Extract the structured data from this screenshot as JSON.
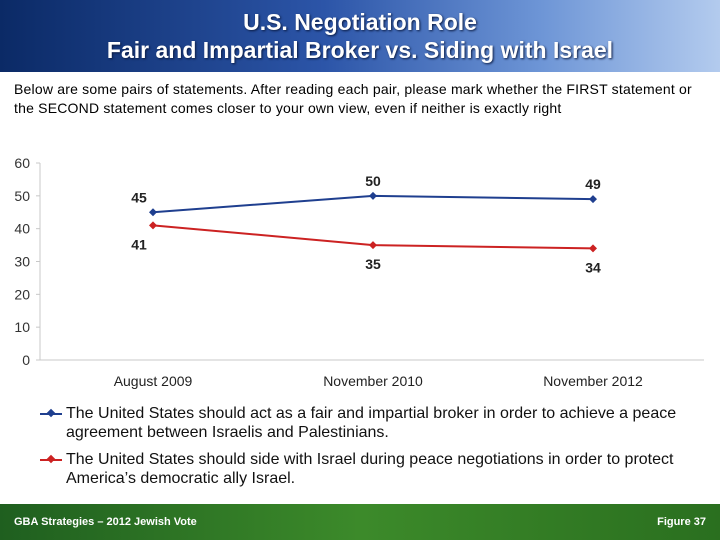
{
  "header": {
    "title_line1": "U.S. Negotiation Role",
    "title_line2": "Fair and Impartial Broker vs. Siding with Israel"
  },
  "instructions": "Below are some pairs of statements. After reading each pair, please mark whether the FIRST statement or the SECOND statement comes closer to your own view, even if neither is exactly right",
  "chart_data": {
    "type": "line",
    "categories": [
      "August 2009",
      "November 2010",
      "November 2012"
    ],
    "ylim": [
      0,
      60
    ],
    "yticks": [
      0,
      10,
      20,
      30,
      40,
      50,
      60
    ],
    "grid": false,
    "legend_position": "bottom",
    "series": [
      {
        "name": "The United States should act as a fair and impartial broker in order to achieve a peace agreement between Israelis and Palestinians.",
        "values": [
          45,
          50,
          49
        ],
        "color": "#1f3f8f",
        "label_positions": [
          "above",
          "above",
          "above"
        ]
      },
      {
        "name": "The United States should side with Israel during peace negotiations in order to protect America’s democratic ally Israel.",
        "values": [
          41,
          35,
          34
        ],
        "color": "#cc2222",
        "label_positions": [
          "below",
          "below",
          "below"
        ]
      }
    ]
  },
  "footer": {
    "left": "GBA Strategies – 2012 Jewish Vote",
    "right": "Figure 37"
  }
}
